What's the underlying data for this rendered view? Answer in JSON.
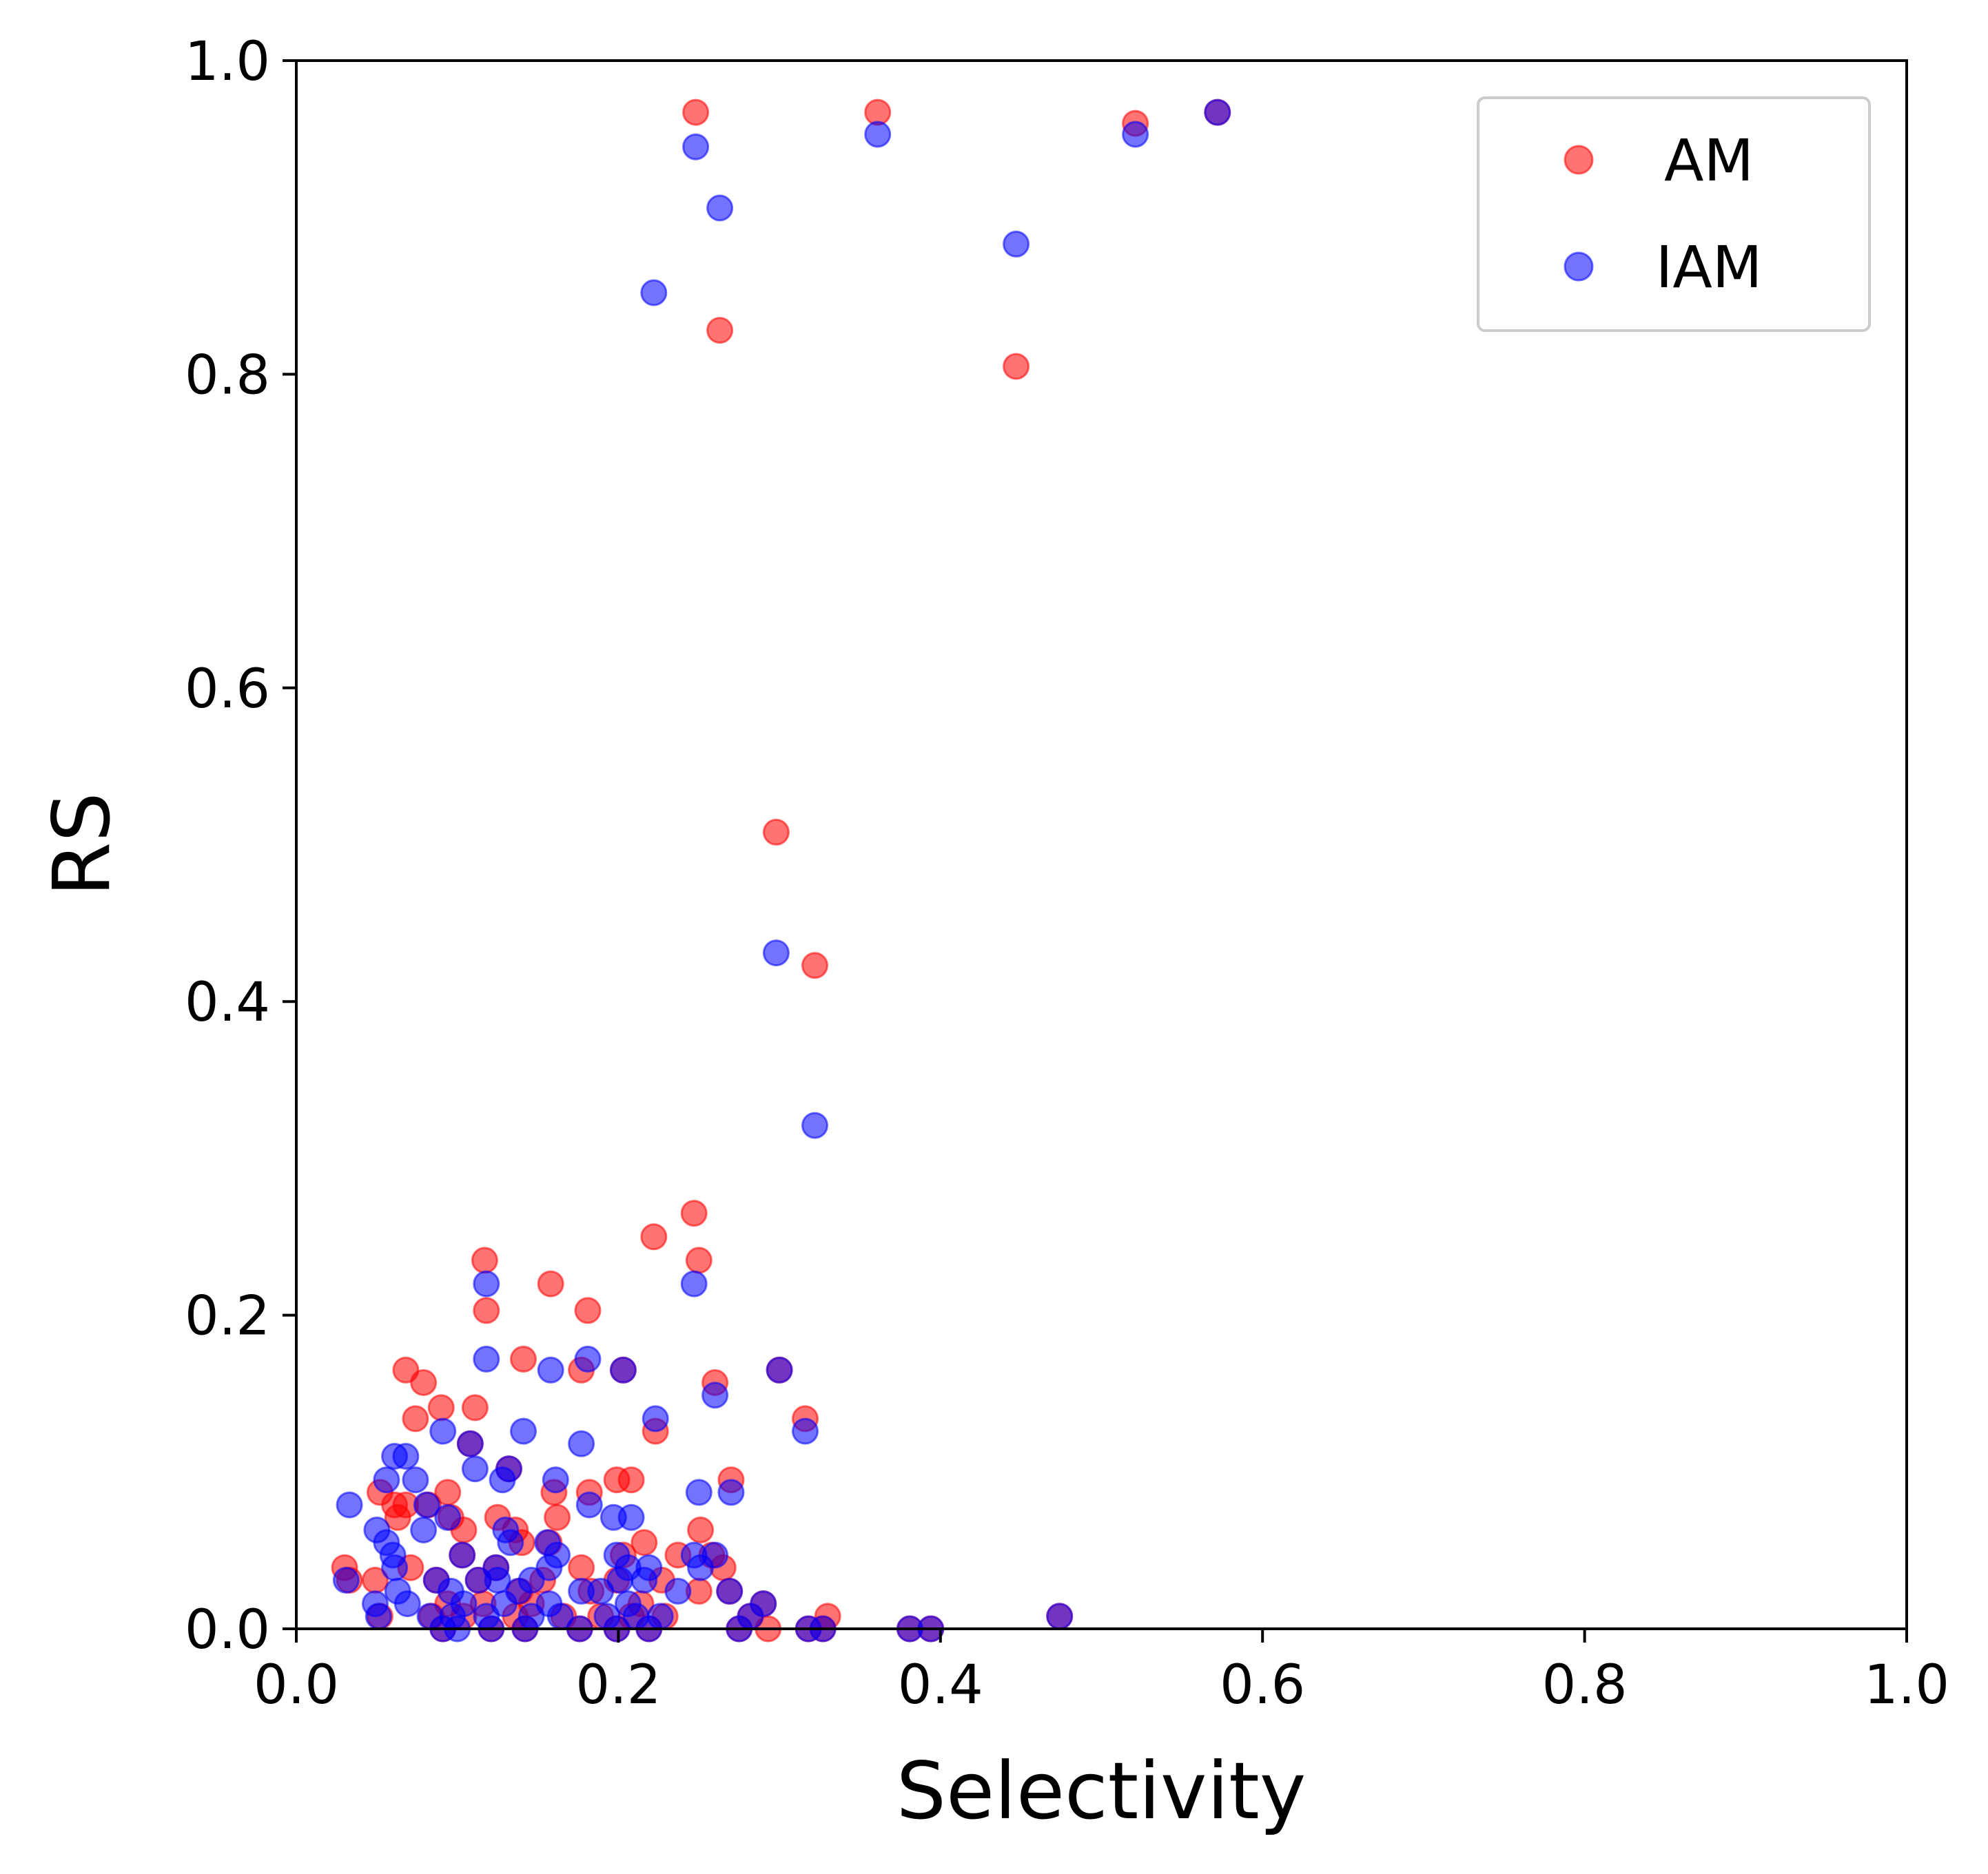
{
  "colors": {
    "background": "#ffffff",
    "axis": "#000000",
    "legend_border": "#cccccc"
  },
  "chart_data": {
    "type": "scatter",
    "title": "",
    "xlabel": "Selectivity",
    "ylabel": "RS",
    "xlim": [
      0.0,
      1.0
    ],
    "ylim": [
      0.0,
      1.0
    ],
    "x_ticks": [
      "0.0",
      "0.2",
      "0.4",
      "0.6",
      "0.8",
      "1.0"
    ],
    "y_ticks": [
      "0.0",
      "0.2",
      "0.4",
      "0.6",
      "0.8",
      "1.0"
    ],
    "grid": false,
    "legend_position": "top-right",
    "marker_alpha": 0.55,
    "series": [
      {
        "name": "AM",
        "color": "#ff0000",
        "points": [
          [
            0.248,
            0.967
          ],
          [
            0.361,
            0.967
          ],
          [
            0.521,
            0.96
          ],
          [
            0.572,
            0.967
          ],
          [
            0.263,
            0.828
          ],
          [
            0.447,
            0.805
          ],
          [
            0.298,
            0.508
          ],
          [
            0.322,
            0.423
          ],
          [
            0.247,
            0.265
          ],
          [
            0.222,
            0.25
          ],
          [
            0.25,
            0.235
          ],
          [
            0.117,
            0.235
          ],
          [
            0.158,
            0.22
          ],
          [
            0.118,
            0.203
          ],
          [
            0.181,
            0.203
          ],
          [
            0.141,
            0.172
          ],
          [
            0.068,
            0.165
          ],
          [
            0.177,
            0.165
          ],
          [
            0.203,
            0.165
          ],
          [
            0.3,
            0.165
          ],
          [
            0.079,
            0.157
          ],
          [
            0.26,
            0.157
          ],
          [
            0.09,
            0.141
          ],
          [
            0.111,
            0.141
          ],
          [
            0.074,
            0.134
          ],
          [
            0.316,
            0.134
          ],
          [
            0.223,
            0.126
          ],
          [
            0.108,
            0.118
          ],
          [
            0.132,
            0.102
          ],
          [
            0.199,
            0.095
          ],
          [
            0.208,
            0.095
          ],
          [
            0.27,
            0.095
          ],
          [
            0.052,
            0.087
          ],
          [
            0.094,
            0.087
          ],
          [
            0.16,
            0.087
          ],
          [
            0.182,
            0.087
          ],
          [
            0.061,
            0.079
          ],
          [
            0.068,
            0.079
          ],
          [
            0.082,
            0.079
          ],
          [
            0.063,
            0.071
          ],
          [
            0.096,
            0.071
          ],
          [
            0.125,
            0.071
          ],
          [
            0.162,
            0.071
          ],
          [
            0.104,
            0.063
          ],
          [
            0.136,
            0.063
          ],
          [
            0.251,
            0.063
          ],
          [
            0.14,
            0.055
          ],
          [
            0.157,
            0.055
          ],
          [
            0.216,
            0.055
          ],
          [
            0.103,
            0.047
          ],
          [
            0.237,
            0.047
          ],
          [
            0.258,
            0.047
          ],
          [
            0.203,
            0.047
          ],
          [
            0.03,
            0.039
          ],
          [
            0.071,
            0.039
          ],
          [
            0.124,
            0.039
          ],
          [
            0.177,
            0.039
          ],
          [
            0.265,
            0.039
          ],
          [
            0.033,
            0.031
          ],
          [
            0.049,
            0.031
          ],
          [
            0.087,
            0.031
          ],
          [
            0.113,
            0.031
          ],
          [
            0.153,
            0.031
          ],
          [
            0.199,
            0.031
          ],
          [
            0.227,
            0.031
          ],
          [
            0.33,
            0.008
          ],
          [
            0.25,
            0.024
          ],
          [
            0.269,
            0.024
          ],
          [
            0.139,
            0.024
          ],
          [
            0.183,
            0.024
          ],
          [
            0.094,
            0.016
          ],
          [
            0.116,
            0.016
          ],
          [
            0.146,
            0.016
          ],
          [
            0.214,
            0.016
          ],
          [
            0.29,
            0.016
          ],
          [
            0.052,
            0.008
          ],
          [
            0.084,
            0.008
          ],
          [
            0.104,
            0.008
          ],
          [
            0.136,
            0.008
          ],
          [
            0.166,
            0.008
          ],
          [
            0.189,
            0.008
          ],
          [
            0.208,
            0.008
          ],
          [
            0.229,
            0.008
          ],
          [
            0.282,
            0.008
          ],
          [
            0.474,
            0.008
          ],
          [
            0.091,
            0.0
          ],
          [
            0.121,
            0.0
          ],
          [
            0.142,
            0.0
          ],
          [
            0.176,
            0.0
          ],
          [
            0.199,
            0.0
          ],
          [
            0.219,
            0.0
          ],
          [
            0.275,
            0.0
          ],
          [
            0.293,
            0.0
          ],
          [
            0.318,
            0.0
          ],
          [
            0.327,
            0.0
          ],
          [
            0.381,
            0.0
          ],
          [
            0.394,
            0.0
          ]
        ]
      },
      {
        "name": "IAM",
        "color": "#0000ff",
        "points": [
          [
            0.248,
            0.945
          ],
          [
            0.361,
            0.953
          ],
          [
            0.521,
            0.953
          ],
          [
            0.572,
            0.967
          ],
          [
            0.263,
            0.906
          ],
          [
            0.447,
            0.883
          ],
          [
            0.222,
            0.852
          ],
          [
            0.298,
            0.431
          ],
          [
            0.322,
            0.321
          ],
          [
            0.118,
            0.22
          ],
          [
            0.247,
            0.22
          ],
          [
            0.118,
            0.172
          ],
          [
            0.181,
            0.172
          ],
          [
            0.158,
            0.165
          ],
          [
            0.203,
            0.165
          ],
          [
            0.3,
            0.165
          ],
          [
            0.26,
            0.149
          ],
          [
            0.223,
            0.134
          ],
          [
            0.091,
            0.126
          ],
          [
            0.141,
            0.126
          ],
          [
            0.316,
            0.126
          ],
          [
            0.108,
            0.118
          ],
          [
            0.177,
            0.118
          ],
          [
            0.061,
            0.11
          ],
          [
            0.068,
            0.11
          ],
          [
            0.111,
            0.102
          ],
          [
            0.132,
            0.102
          ],
          [
            0.056,
            0.095
          ],
          [
            0.074,
            0.095
          ],
          [
            0.128,
            0.095
          ],
          [
            0.161,
            0.095
          ],
          [
            0.25,
            0.087
          ],
          [
            0.27,
            0.087
          ],
          [
            0.033,
            0.079
          ],
          [
            0.081,
            0.079
          ],
          [
            0.182,
            0.079
          ],
          [
            0.094,
            0.071
          ],
          [
            0.197,
            0.071
          ],
          [
            0.208,
            0.071
          ],
          [
            0.05,
            0.063
          ],
          [
            0.079,
            0.063
          ],
          [
            0.13,
            0.063
          ],
          [
            0.056,
            0.055
          ],
          [
            0.133,
            0.055
          ],
          [
            0.156,
            0.055
          ],
          [
            0.06,
            0.047
          ],
          [
            0.103,
            0.047
          ],
          [
            0.162,
            0.047
          ],
          [
            0.199,
            0.047
          ],
          [
            0.247,
            0.047
          ],
          [
            0.26,
            0.047
          ],
          [
            0.061,
            0.039
          ],
          [
            0.124,
            0.039
          ],
          [
            0.157,
            0.039
          ],
          [
            0.206,
            0.039
          ],
          [
            0.219,
            0.039
          ],
          [
            0.251,
            0.039
          ],
          [
            0.031,
            0.031
          ],
          [
            0.087,
            0.031
          ],
          [
            0.113,
            0.031
          ],
          [
            0.125,
            0.031
          ],
          [
            0.146,
            0.031
          ],
          [
            0.201,
            0.031
          ],
          [
            0.216,
            0.031
          ],
          [
            0.063,
            0.024
          ],
          [
            0.096,
            0.024
          ],
          [
            0.138,
            0.024
          ],
          [
            0.177,
            0.024
          ],
          [
            0.189,
            0.024
          ],
          [
            0.237,
            0.024
          ],
          [
            0.269,
            0.024
          ],
          [
            0.049,
            0.016
          ],
          [
            0.069,
            0.016
          ],
          [
            0.104,
            0.016
          ],
          [
            0.129,
            0.016
          ],
          [
            0.157,
            0.016
          ],
          [
            0.206,
            0.016
          ],
          [
            0.29,
            0.016
          ],
          [
            0.051,
            0.008
          ],
          [
            0.083,
            0.008
          ],
          [
            0.097,
            0.008
          ],
          [
            0.118,
            0.008
          ],
          [
            0.146,
            0.008
          ],
          [
            0.164,
            0.008
          ],
          [
            0.193,
            0.008
          ],
          [
            0.211,
            0.008
          ],
          [
            0.226,
            0.008
          ],
          [
            0.282,
            0.008
          ],
          [
            0.474,
            0.008
          ],
          [
            0.091,
            0.0
          ],
          [
            0.1,
            0.0
          ],
          [
            0.121,
            0.0
          ],
          [
            0.142,
            0.0
          ],
          [
            0.176,
            0.0
          ],
          [
            0.199,
            0.0
          ],
          [
            0.219,
            0.0
          ],
          [
            0.275,
            0.0
          ],
          [
            0.318,
            0.0
          ],
          [
            0.327,
            0.0
          ],
          [
            0.381,
            0.0
          ],
          [
            0.394,
            0.0
          ]
        ]
      }
    ]
  }
}
